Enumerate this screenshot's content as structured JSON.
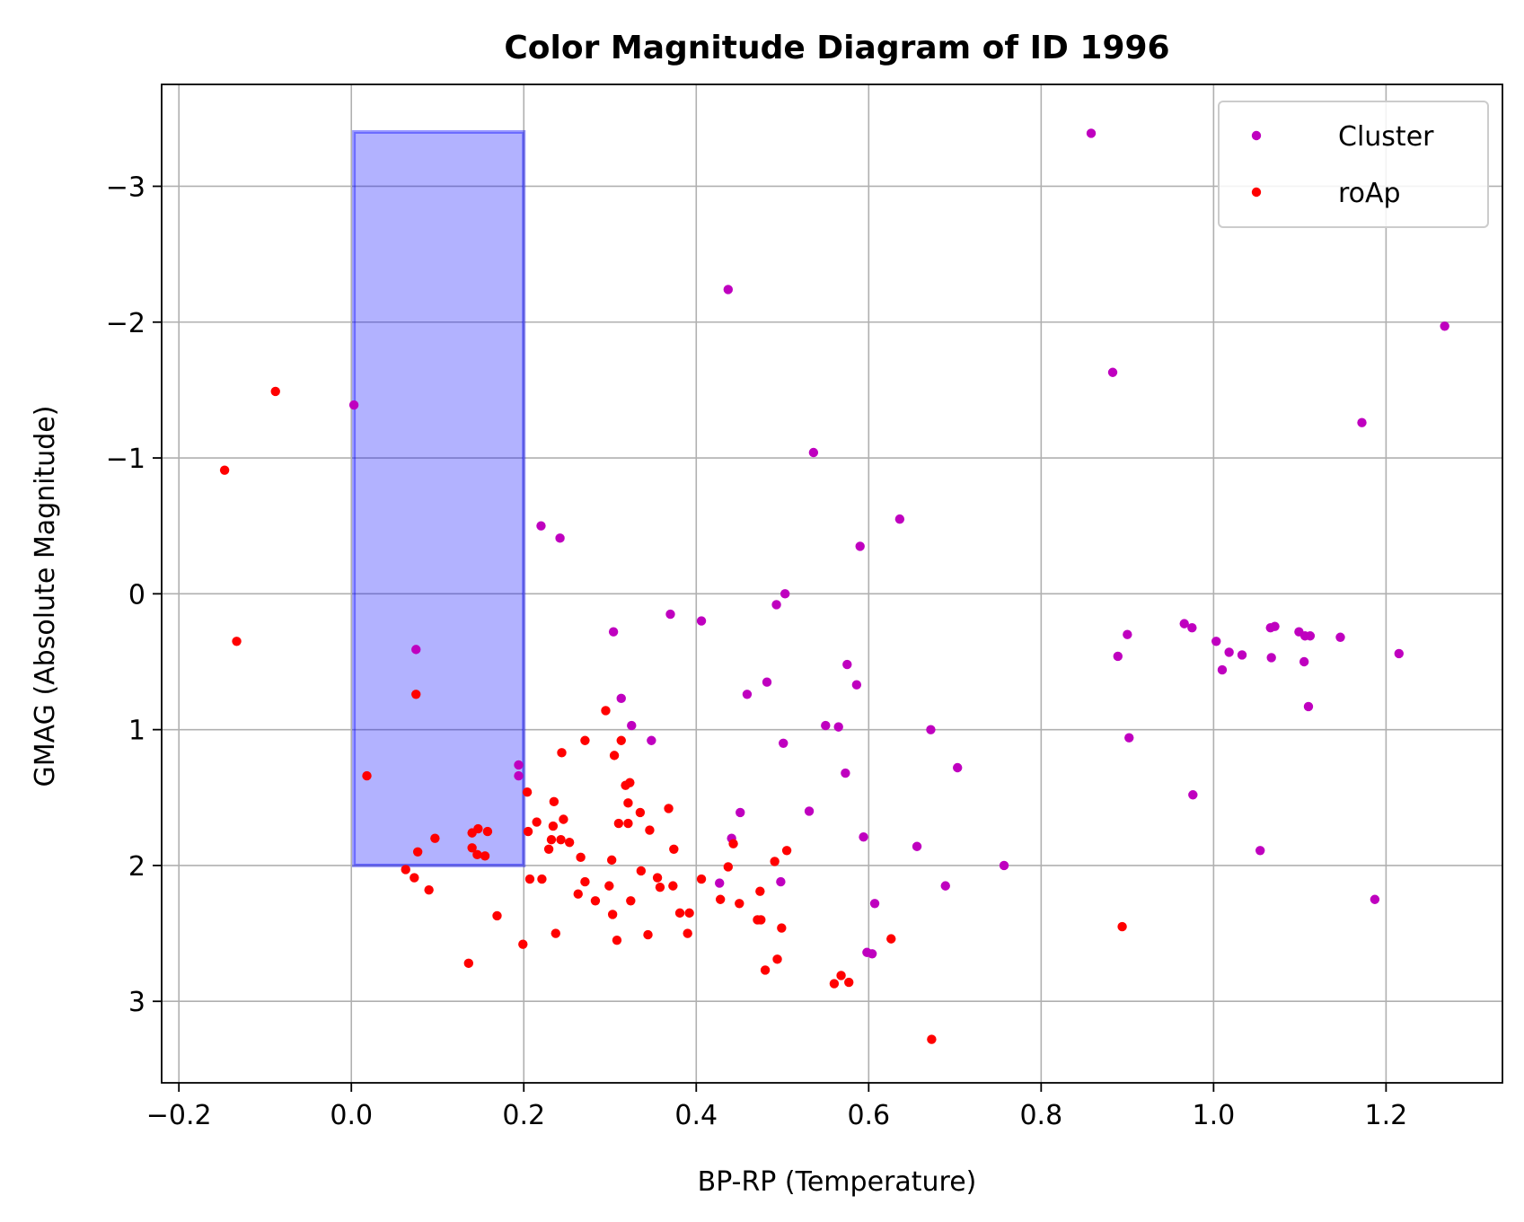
{
  "chart_data": {
    "type": "scatter",
    "title": "Color Magnitude Diagram of ID 1996",
    "xlabel": "BP-RP (Temperature)",
    "ylabel": "GMAG (Absolute Magnitude)",
    "xlim": [
      -0.22,
      1.335
    ],
    "ylim": [
      3.6,
      -3.75
    ],
    "y_inverted": true,
    "grid": true,
    "legend_position": "top-right",
    "x_ticks": [
      -0.2,
      0.0,
      0.2,
      0.4,
      0.6,
      0.8,
      1.0,
      1.2
    ],
    "x_tick_labels": [
      "−0.2",
      "0.0",
      "0.2",
      "0.4",
      "0.6",
      "0.8",
      "1.0",
      "1.2"
    ],
    "y_ticks": [
      -3,
      -2,
      -1,
      0,
      1,
      2,
      3
    ],
    "y_tick_labels": [
      "−3",
      "−2",
      "−1",
      "0",
      "1",
      "2",
      "3"
    ],
    "highlight_region": {
      "x": [
        0.003,
        0.2
      ],
      "y": [
        -3.4,
        2.0
      ],
      "color": "#0000ff",
      "opacity": 0.3
    },
    "series": [
      {
        "name": "Cluster",
        "color": "#bf00bf",
        "points": [
          [
            0.858,
            -3.39
          ],
          [
            0.437,
            -2.24
          ],
          [
            1.268,
            -1.97
          ],
          [
            0.883,
            -1.63
          ],
          [
            0.003,
            -1.39
          ],
          [
            1.172,
            -1.26
          ],
          [
            0.536,
            -1.04
          ],
          [
            0.636,
            -0.55
          ],
          [
            0.22,
            -0.5
          ],
          [
            0.242,
            -0.41
          ],
          [
            0.59,
            -0.35
          ],
          [
            0.503,
            0.0
          ],
          [
            0.493,
            0.08
          ],
          [
            0.37,
            0.15
          ],
          [
            0.406,
            0.2
          ],
          [
            0.304,
            0.28
          ],
          [
            0.966,
            0.22
          ],
          [
            0.975,
            0.25
          ],
          [
            1.003,
            0.35
          ],
          [
            1.018,
            0.43
          ],
          [
            1.033,
            0.45
          ],
          [
            1.066,
            0.25
          ],
          [
            1.071,
            0.24
          ],
          [
            1.099,
            0.28
          ],
          [
            1.106,
            0.31
          ],
          [
            1.112,
            0.31
          ],
          [
            1.147,
            0.32
          ],
          [
            1.215,
            0.44
          ],
          [
            0.9,
            0.3
          ],
          [
            0.889,
            0.46
          ],
          [
            1.01,
            0.56
          ],
          [
            1.067,
            0.47
          ],
          [
            1.105,
            0.5
          ],
          [
            1.11,
            0.83
          ],
          [
            0.575,
            0.52
          ],
          [
            0.586,
            0.67
          ],
          [
            0.482,
            0.65
          ],
          [
            0.459,
            0.74
          ],
          [
            0.313,
            0.77
          ],
          [
            0.075,
            0.41
          ],
          [
            0.325,
            0.97
          ],
          [
            0.348,
            1.08
          ],
          [
            0.55,
            0.97
          ],
          [
            0.565,
            0.98
          ],
          [
            0.672,
            1.0
          ],
          [
            0.501,
            1.1
          ],
          [
            0.902,
            1.06
          ],
          [
            0.703,
            1.28
          ],
          [
            0.573,
            1.32
          ],
          [
            0.194,
            1.26
          ],
          [
            0.194,
            1.34
          ],
          [
            0.451,
            1.61
          ],
          [
            0.531,
            1.6
          ],
          [
            0.976,
            1.48
          ],
          [
            0.441,
            1.8
          ],
          [
            0.594,
            1.79
          ],
          [
            0.656,
            1.86
          ],
          [
            0.757,
            2.0
          ],
          [
            1.054,
            1.89
          ],
          [
            0.427,
            2.13
          ],
          [
            0.498,
            2.12
          ],
          [
            0.689,
            2.15
          ],
          [
            0.607,
            2.28
          ],
          [
            0.598,
            2.64
          ],
          [
            0.604,
            2.65
          ],
          [
            1.187,
            2.25
          ]
        ]
      },
      {
        "name": "roAp",
        "color": "#ff0000",
        "points": [
          [
            -0.088,
            -1.49
          ],
          [
            -0.147,
            -0.91
          ],
          [
            -0.133,
            0.35
          ],
          [
            0.075,
            0.74
          ],
          [
            0.018,
            1.34
          ],
          [
            0.077,
            1.9
          ],
          [
            0.097,
            1.8
          ],
          [
            0.14,
            1.76
          ],
          [
            0.147,
            1.73
          ],
          [
            0.158,
            1.75
          ],
          [
            0.14,
            1.87
          ],
          [
            0.146,
            1.92
          ],
          [
            0.155,
            1.93
          ],
          [
            0.063,
            2.03
          ],
          [
            0.073,
            2.09
          ],
          [
            0.09,
            2.18
          ],
          [
            0.136,
            2.72
          ],
          [
            0.169,
            2.37
          ],
          [
            0.199,
            2.58
          ],
          [
            0.204,
            1.46
          ],
          [
            0.205,
            1.75
          ],
          [
            0.215,
            1.68
          ],
          [
            0.207,
            2.1
          ],
          [
            0.221,
            2.1
          ],
          [
            0.235,
            1.53
          ],
          [
            0.234,
            1.71
          ],
          [
            0.232,
            1.81
          ],
          [
            0.229,
            1.88
          ],
          [
            0.243,
            1.81
          ],
          [
            0.246,
            1.66
          ],
          [
            0.253,
            1.83
          ],
          [
            0.237,
            2.5
          ],
          [
            0.244,
            1.17
          ],
          [
            0.271,
            1.08
          ],
          [
            0.266,
            1.94
          ],
          [
            0.263,
            2.21
          ],
          [
            0.271,
            2.12
          ],
          [
            0.283,
            2.26
          ],
          [
            0.295,
            0.86
          ],
          [
            0.305,
            1.19
          ],
          [
            0.313,
            1.08
          ],
          [
            0.318,
            1.41
          ],
          [
            0.323,
            1.39
          ],
          [
            0.321,
            1.54
          ],
          [
            0.31,
            1.69
          ],
          [
            0.321,
            1.69
          ],
          [
            0.335,
            1.61
          ],
          [
            0.346,
            1.74
          ],
          [
            0.302,
            1.96
          ],
          [
            0.299,
            2.15
          ],
          [
            0.303,
            2.36
          ],
          [
            0.308,
            2.55
          ],
          [
            0.324,
            2.26
          ],
          [
            0.336,
            2.04
          ],
          [
            0.344,
            2.51
          ],
          [
            0.355,
            2.09
          ],
          [
            0.358,
            2.16
          ],
          [
            0.368,
            1.58
          ],
          [
            0.374,
            1.88
          ],
          [
            0.373,
            2.15
          ],
          [
            0.381,
            2.35
          ],
          [
            0.39,
            2.5
          ],
          [
            0.392,
            2.35
          ],
          [
            0.406,
            2.1
          ],
          [
            0.428,
            2.25
          ],
          [
            0.437,
            2.01
          ],
          [
            0.443,
            1.84
          ],
          [
            0.45,
            2.28
          ],
          [
            0.471,
            2.4
          ],
          [
            0.474,
            2.19
          ],
          [
            0.475,
            2.4
          ],
          [
            0.48,
            2.77
          ],
          [
            0.491,
            1.97
          ],
          [
            0.494,
            2.69
          ],
          [
            0.499,
            2.46
          ],
          [
            0.505,
            1.89
          ],
          [
            0.56,
            2.87
          ],
          [
            0.568,
            2.81
          ],
          [
            0.577,
            2.86
          ],
          [
            0.626,
            2.54
          ],
          [
            0.673,
            3.28
          ],
          [
            0.894,
            2.45
          ]
        ]
      }
    ]
  }
}
